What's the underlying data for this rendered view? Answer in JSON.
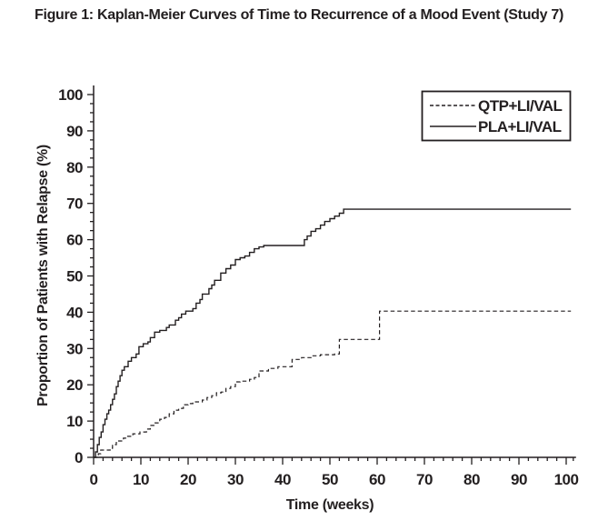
{
  "figure": {
    "title": "Figure 1: Kaplan-Meier Curves of Time to Recurrence of a Mood Event (Study 7)"
  },
  "colors": {
    "line": "#231f20",
    "text": "#231f20",
    "background": "#ffffff"
  },
  "chart_data": {
    "type": "line",
    "subtype": "kaplan-meier-step",
    "title": "Figure 1: Kaplan-Meier Curves of Time to Recurrence of a Mood Event (Study 7)",
    "xlabel": "Time (weeks)",
    "ylabel": "Proportion of Patients with Relapse (%)",
    "xlim": [
      0,
      102
    ],
    "ylim": [
      0,
      100
    ],
    "x_major_ticks": [
      0,
      10,
      20,
      30,
      40,
      50,
      60,
      70,
      80,
      90,
      100
    ],
    "x_minor_tick_step": 2,
    "y_major_ticks": [
      0,
      10,
      20,
      30,
      40,
      50,
      60,
      70,
      80,
      90,
      100
    ],
    "y_minor_tick_step": 2.5,
    "grid": false,
    "legend_position": "top-right",
    "series": [
      {
        "name": "QTP+LI/VAL",
        "line_style": "dashed",
        "color": "#231f20",
        "points": [
          [
            0,
            0
          ],
          [
            1,
            1
          ],
          [
            1.5,
            2
          ],
          [
            3.5,
            2.5
          ],
          [
            4,
            3.5
          ],
          [
            4.8,
            4.5
          ],
          [
            6.3,
            5.3
          ],
          [
            7,
            5.8
          ],
          [
            8.3,
            6.5
          ],
          [
            9.8,
            7
          ],
          [
            11.2,
            7.8
          ],
          [
            12,
            8.8
          ],
          [
            13,
            9.5
          ],
          [
            14,
            10.5
          ],
          [
            15,
            11
          ],
          [
            16,
            12
          ],
          [
            17,
            13
          ],
          [
            18,
            13.5
          ],
          [
            19,
            14.5
          ],
          [
            20,
            14.8
          ],
          [
            21,
            15.3
          ],
          [
            23,
            15.8
          ],
          [
            24,
            16.5
          ],
          [
            25,
            17
          ],
          [
            26,
            17.8
          ],
          [
            27,
            18
          ],
          [
            28,
            19
          ],
          [
            29,
            19.5
          ],
          [
            30,
            20.8
          ],
          [
            31,
            21
          ],
          [
            33,
            21.5
          ],
          [
            34,
            22
          ],
          [
            35,
            23.8
          ],
          [
            37,
            24.5
          ],
          [
            39,
            25
          ],
          [
            42,
            27
          ],
          [
            44,
            27.5
          ],
          [
            46,
            28
          ],
          [
            48,
            28.3
          ],
          [
            51,
            28.5
          ],
          [
            52,
            32.5
          ],
          [
            60.5,
            40.3
          ],
          [
            101,
            40.3
          ]
        ]
      },
      {
        "name": "PLA+LI/VAL",
        "line_style": "solid",
        "color": "#231f20",
        "points": [
          [
            0,
            0
          ],
          [
            0.4,
            1.5
          ],
          [
            0.8,
            3.5
          ],
          [
            1.2,
            5.5
          ],
          [
            1.6,
            7
          ],
          [
            2,
            9
          ],
          [
            2.4,
            10.5
          ],
          [
            2.8,
            12
          ],
          [
            3.2,
            13
          ],
          [
            3.6,
            14.5
          ],
          [
            4,
            16
          ],
          [
            4.4,
            17.5
          ],
          [
            4.8,
            19.5
          ],
          [
            5.2,
            21
          ],
          [
            5.6,
            22.5
          ],
          [
            6,
            24
          ],
          [
            6.5,
            25
          ],
          [
            7.3,
            26.5
          ],
          [
            8,
            27.5
          ],
          [
            9,
            28.5
          ],
          [
            9.6,
            30.5
          ],
          [
            10.5,
            31.3
          ],
          [
            11.5,
            31.8
          ],
          [
            12,
            33
          ],
          [
            12.9,
            34.5
          ],
          [
            14,
            35
          ],
          [
            15.4,
            35.8
          ],
          [
            16,
            36.5
          ],
          [
            17.3,
            37.8
          ],
          [
            18,
            38.5
          ],
          [
            18.6,
            39.5
          ],
          [
            19.5,
            40.3
          ],
          [
            21,
            41
          ],
          [
            21.7,
            42.5
          ],
          [
            22.5,
            43.5
          ],
          [
            23,
            45
          ],
          [
            24.4,
            46.5
          ],
          [
            25,
            47.5
          ],
          [
            25.6,
            48.8
          ],
          [
            26.9,
            50.8
          ],
          [
            28,
            52
          ],
          [
            29,
            53
          ],
          [
            30,
            54.5
          ],
          [
            31,
            55
          ],
          [
            32,
            55.5
          ],
          [
            33,
            56.5
          ],
          [
            34,
            57.5
          ],
          [
            35,
            58
          ],
          [
            36,
            58.4
          ],
          [
            44.6,
            60
          ],
          [
            45.2,
            61
          ],
          [
            46,
            62.3
          ],
          [
            47,
            63
          ],
          [
            48,
            64
          ],
          [
            48.9,
            65
          ],
          [
            50,
            65.8
          ],
          [
            51,
            66.5
          ],
          [
            52,
            67.3
          ],
          [
            52.9,
            68.4
          ],
          [
            101,
            68.4
          ]
        ]
      }
    ]
  }
}
